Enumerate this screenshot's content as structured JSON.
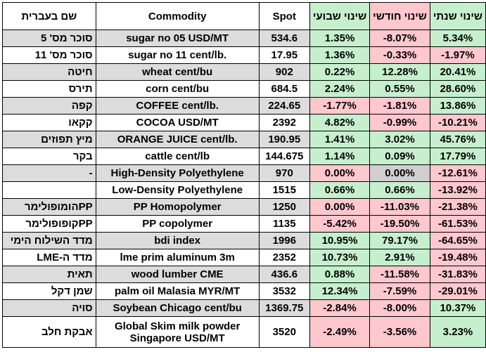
{
  "headers": {
    "hebrew_name": "שם בעברית",
    "commodity": "Commodity",
    "spot": "Spot",
    "weekly": "שינוי שבועי",
    "monthly": "שינוי חודשי",
    "yearly": "שינוי שנתי"
  },
  "rows": [
    {
      "heb": "סוכר מס' 5",
      "com": "sugar no 05 USD/MT",
      "spot": "534.6",
      "w": "1.35%",
      "m": "-8.07%",
      "y": "5.34%",
      "wc": "pos",
      "mc": "neg",
      "yc": "pos"
    },
    {
      "heb": "סוכר מס' 11",
      "com": "sugar no 11 cent/lb.",
      "spot": "17.95",
      "w": "1.36%",
      "m": "-0.33%",
      "y": "-1.97%",
      "wc": "pos",
      "mc": "neg",
      "yc": "neg"
    },
    {
      "heb": "חיטה",
      "com": "wheat cent/bu",
      "spot": "902",
      "w": "0.22%",
      "m": "12.28%",
      "y": "20.41%",
      "wc": "pos",
      "mc": "pos",
      "yc": "pos"
    },
    {
      "heb": "תירס",
      "com": "corn cent/bu",
      "spot": "684.5",
      "w": "2.24%",
      "m": "0.55%",
      "y": "28.60%",
      "wc": "pos",
      "mc": "pos",
      "yc": "pos"
    },
    {
      "heb": "קפה",
      "com": "COFFEE cent/lb.",
      "spot": "224.65",
      "w": "-1.77%",
      "m": "-1.81%",
      "y": "13.86%",
      "wc": "neg",
      "mc": "neg",
      "yc": "pos"
    },
    {
      "heb": "קקאו",
      "com": "COCOA USD/MT",
      "spot": "2392",
      "w": "4.82%",
      "m": "-0.99%",
      "y": "-10.21%",
      "wc": "pos",
      "mc": "neg",
      "yc": "neg"
    },
    {
      "heb": "מיץ תפוזים",
      "com": "ORANGE JUICE cent/lb.",
      "spot": "190.95",
      "w": "1.41%",
      "m": "3.02%",
      "y": "45.76%",
      "wc": "pos",
      "mc": "pos",
      "yc": "pos"
    },
    {
      "heb": "בקר",
      "com": "cattle cent/lb",
      "spot": "144.675",
      "w": "1.14%",
      "m": "0.09%",
      "y": "17.79%",
      "wc": "pos",
      "mc": "pos",
      "yc": "pos"
    },
    {
      "heb": "-",
      "com": "High-Density Polyethylene",
      "spot": "970",
      "w": "0.00%",
      "m": "0.00%",
      "y": "-12.61%",
      "wc": "neg",
      "mc": "zero",
      "yc": "neg"
    },
    {
      "heb": "",
      "com": "Low-Density Polyethylene",
      "spot": "1515",
      "w": "0.66%",
      "m": "0.66%",
      "y": "-13.92%",
      "wc": "pos",
      "mc": "pos",
      "yc": "neg"
    },
    {
      "heb": "PPהומופולימר",
      "com": "PP Homopolymer",
      "spot": "1250",
      "w": "0.00%",
      "m": "-11.03%",
      "y": "-21.38%",
      "wc": "neg",
      "mc": "neg",
      "yc": "neg"
    },
    {
      "heb": "PPקופופולימר",
      "com": "PP copolymer",
      "spot": "1135",
      "w": "-5.42%",
      "m": "-19.50%",
      "y": "-61.53%",
      "wc": "neg",
      "mc": "neg",
      "yc": "neg"
    },
    {
      "heb": "מדד השילוח הימי",
      "com": "bdi index",
      "spot": "1996",
      "w": "10.95%",
      "m": "79.17%",
      "y": "-64.65%",
      "wc": "pos",
      "mc": "pos",
      "yc": "neg"
    },
    {
      "heb": "מדד ה-LME",
      "com": "lme prim aluminum 3m",
      "spot": "2352",
      "w": "10.73%",
      "m": "2.91%",
      "y": "-19.48%",
      "wc": "pos",
      "mc": "pos",
      "yc": "neg"
    },
    {
      "heb": "תאית",
      "com": "wood lumber CME",
      "spot": "436.6",
      "w": "0.88%",
      "m": "-11.58%",
      "y": "-31.83%",
      "wc": "pos",
      "mc": "neg",
      "yc": "neg"
    },
    {
      "heb": "שמן דקל",
      "com": "palm oil Malasia MYR/MT",
      "spot": "3532",
      "w": "12.34%",
      "m": "-7.59%",
      "y": "-29.01%",
      "wc": "pos",
      "mc": "neg",
      "yc": "neg"
    },
    {
      "heb": "סויה",
      "com": "Soybean Chicago cent/bu",
      "spot": "1369.75",
      "w": "-2.84%",
      "m": "-8.00%",
      "y": "10.37%",
      "wc": "neg",
      "mc": "neg",
      "yc": "pos"
    },
    {
      "heb": "אבקת חלב",
      "com_line1": "Global Skim milk powder",
      "com_line2": "Singapore USD/MT",
      "spot": "3520",
      "w": "-2.49%",
      "m": "-3.56%",
      "y": "3.23%",
      "wc": "neg",
      "mc": "neg",
      "yc": "pos",
      "tall": true
    }
  ]
}
